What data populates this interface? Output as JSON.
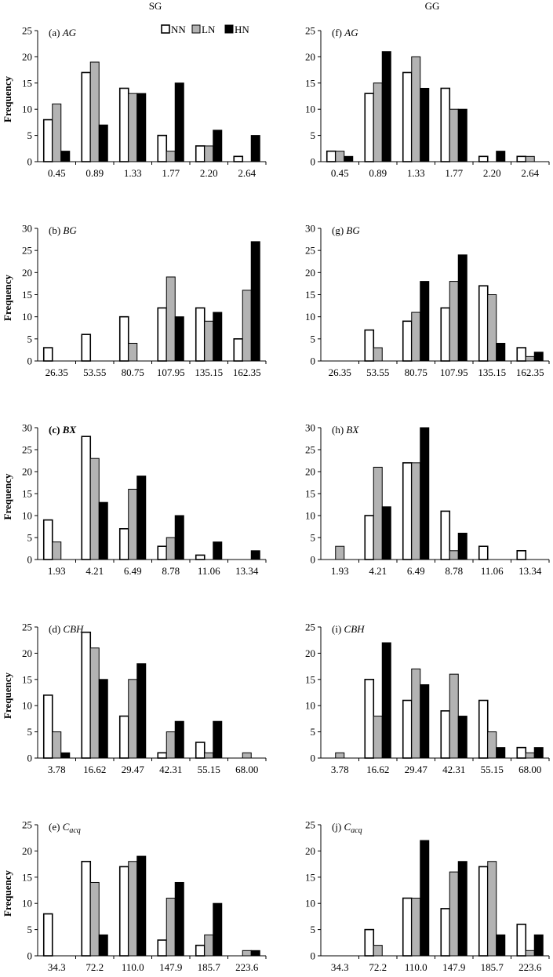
{
  "figure": {
    "column_titles": [
      "SG",
      "GG"
    ],
    "ylabel": "Frequency",
    "legend": [
      "NN",
      "LN",
      "HN"
    ],
    "colors": {
      "NN": "#ffffff",
      "LN": "#b3b3b3",
      "HN": "#000000",
      "axis": "#000000"
    }
  },
  "chart_data": [
    {
      "type": "bar",
      "panel_label": "(a)",
      "panel_var": "AG",
      "column": "SG",
      "categories": [
        "0.45",
        "0.89",
        "1.33",
        "1.77",
        "2.20",
        "2.64"
      ],
      "series": [
        {
          "name": "NN",
          "values": [
            8,
            17,
            14,
            5,
            3,
            1
          ]
        },
        {
          "name": "LN",
          "values": [
            11,
            19,
            13,
            2,
            3,
            0
          ]
        },
        {
          "name": "HN",
          "values": [
            2,
            7,
            13,
            15,
            6,
            5
          ]
        }
      ],
      "ylim": [
        0,
        25
      ],
      "yticks": [
        0,
        5,
        10,
        15,
        20,
        25
      ],
      "ylabel": "Frequency",
      "legend": "top-right"
    },
    {
      "type": "bar",
      "panel_label": "(b)",
      "panel_var": "BG",
      "column": "SG",
      "categories": [
        "26.35",
        "53.55",
        "80.75",
        "107.95",
        "135.15",
        "162.35"
      ],
      "series": [
        {
          "name": "NN",
          "values": [
            3,
            6,
            10,
            12,
            12,
            5
          ]
        },
        {
          "name": "LN",
          "values": [
            0,
            0,
            4,
            19,
            9,
            16
          ]
        },
        {
          "name": "HN",
          "values": [
            0,
            0,
            0,
            10,
            11,
            27
          ]
        }
      ],
      "ylim": [
        0,
        30
      ],
      "yticks": [
        0,
        5,
        10,
        15,
        20,
        25,
        30
      ],
      "ylabel": "Frequency"
    },
    {
      "type": "bar",
      "panel_label": "(c)",
      "panel_var": "BX",
      "column": "SG",
      "label_bold": true,
      "categories": [
        "1.93",
        "4.21",
        "6.49",
        "8.78",
        "11.06",
        "13.34"
      ],
      "series": [
        {
          "name": "NN",
          "values": [
            9,
            28,
            7,
            3,
            1,
            0
          ]
        },
        {
          "name": "LN",
          "values": [
            4,
            23,
            16,
            5,
            0,
            0
          ]
        },
        {
          "name": "HN",
          "values": [
            0,
            13,
            19,
            10,
            4,
            2
          ]
        }
      ],
      "ylim": [
        0,
        30
      ],
      "yticks": [
        0,
        5,
        10,
        15,
        20,
        25,
        30
      ],
      "ylabel": "Frequency"
    },
    {
      "type": "bar",
      "panel_label": "(d)",
      "panel_var": "CBH",
      "column": "SG",
      "categories": [
        "3.78",
        "16.62",
        "29.47",
        "42.31",
        "55.15",
        "68.00"
      ],
      "series": [
        {
          "name": "NN",
          "values": [
            12,
            24,
            8,
            1,
            3,
            0
          ]
        },
        {
          "name": "LN",
          "values": [
            5,
            21,
            15,
            5,
            1,
            1
          ]
        },
        {
          "name": "HN",
          "values": [
            1,
            15,
            18,
            7,
            7,
            0
          ]
        }
      ],
      "ylim": [
        0,
        25
      ],
      "yticks": [
        0,
        5,
        10,
        15,
        20,
        25
      ],
      "ylabel": "Frequency"
    },
    {
      "type": "bar",
      "panel_label": "(e)",
      "panel_var": "C",
      "panel_var_sub": "acq",
      "column": "SG",
      "categories": [
        "34.3",
        "72.2",
        "110.0",
        "147.9",
        "185.7",
        "223.6"
      ],
      "series": [
        {
          "name": "NN",
          "values": [
            8,
            18,
            17,
            3,
            2,
            0
          ]
        },
        {
          "name": "LN",
          "values": [
            0,
            14,
            18,
            11,
            4,
            1
          ]
        },
        {
          "name": "HN",
          "values": [
            0,
            4,
            19,
            14,
            10,
            1
          ]
        }
      ],
      "ylim": [
        0,
        25
      ],
      "yticks": [
        0,
        5,
        10,
        15,
        20,
        25
      ],
      "ylabel": "Frequency"
    },
    {
      "type": "bar",
      "panel_label": "(f)",
      "panel_var": "AG",
      "column": "GG",
      "categories": [
        "0.45",
        "0.89",
        "1.33",
        "1.77",
        "2.20",
        "2.64"
      ],
      "series": [
        {
          "name": "NN",
          "values": [
            2,
            13,
            17,
            14,
            1,
            1
          ]
        },
        {
          "name": "LN",
          "values": [
            2,
            15,
            20,
            10,
            0,
            1
          ]
        },
        {
          "name": "HN",
          "values": [
            1,
            21,
            14,
            10,
            2,
            0
          ]
        }
      ],
      "ylim": [
        0,
        25
      ],
      "yticks": [
        0,
        5,
        10,
        15,
        20,
        25
      ]
    },
    {
      "type": "bar",
      "panel_label": "(g)",
      "panel_var": "BG",
      "column": "GG",
      "categories": [
        "26.35",
        "53.55",
        "80.75",
        "107.95",
        "135.15",
        "162.35"
      ],
      "series": [
        {
          "name": "NN",
          "values": [
            0,
            7,
            9,
            12,
            17,
            3
          ]
        },
        {
          "name": "LN",
          "values": [
            0,
            3,
            11,
            18,
            15,
            1
          ]
        },
        {
          "name": "HN",
          "values": [
            0,
            0,
            18,
            24,
            4,
            2
          ]
        }
      ],
      "ylim": [
        0,
        30
      ],
      "yticks": [
        0,
        5,
        10,
        15,
        20,
        25,
        30
      ]
    },
    {
      "type": "bar",
      "panel_label": "(h)",
      "panel_var": "BX",
      "column": "GG",
      "categories": [
        "1.93",
        "4.21",
        "6.49",
        "8.78",
        "11.06",
        "13.34"
      ],
      "series": [
        {
          "name": "NN",
          "values": [
            0,
            10,
            22,
            11,
            3,
            2
          ]
        },
        {
          "name": "LN",
          "values": [
            3,
            21,
            22,
            2,
            0,
            0
          ]
        },
        {
          "name": "HN",
          "values": [
            0,
            12,
            30,
            6,
            0,
            0
          ]
        }
      ],
      "ylim": [
        0,
        30
      ],
      "yticks": [
        0,
        5,
        10,
        15,
        20,
        25,
        30
      ]
    },
    {
      "type": "bar",
      "panel_label": "(i)",
      "panel_var": "CBH",
      "column": "GG",
      "categories": [
        "3.78",
        "16.62",
        "29.47",
        "42.31",
        "55.15",
        "68.00"
      ],
      "series": [
        {
          "name": "NN",
          "values": [
            0,
            15,
            11,
            9,
            11,
            2
          ]
        },
        {
          "name": "LN",
          "values": [
            1,
            8,
            17,
            16,
            5,
            1
          ]
        },
        {
          "name": "HN",
          "values": [
            0,
            22,
            14,
            8,
            2,
            2
          ]
        }
      ],
      "ylim": [
        0,
        25
      ],
      "yticks": [
        0,
        5,
        10,
        15,
        20,
        25
      ]
    },
    {
      "type": "bar",
      "panel_label": "(j)",
      "panel_var": "C",
      "panel_var_sub": "acq",
      "column": "GG",
      "categories": [
        "34.3",
        "72.2",
        "110.0",
        "147.9",
        "185.7",
        "223.6"
      ],
      "series": [
        {
          "name": "NN",
          "values": [
            0,
            5,
            11,
            9,
            17,
            6
          ]
        },
        {
          "name": "LN",
          "values": [
            0,
            2,
            11,
            16,
            18,
            1
          ]
        },
        {
          "name": "HN",
          "values": [
            0,
            0,
            22,
            18,
            4,
            4
          ]
        }
      ],
      "ylim": [
        0,
        25
      ],
      "yticks": [
        0,
        5,
        10,
        15,
        20,
        25
      ]
    }
  ]
}
